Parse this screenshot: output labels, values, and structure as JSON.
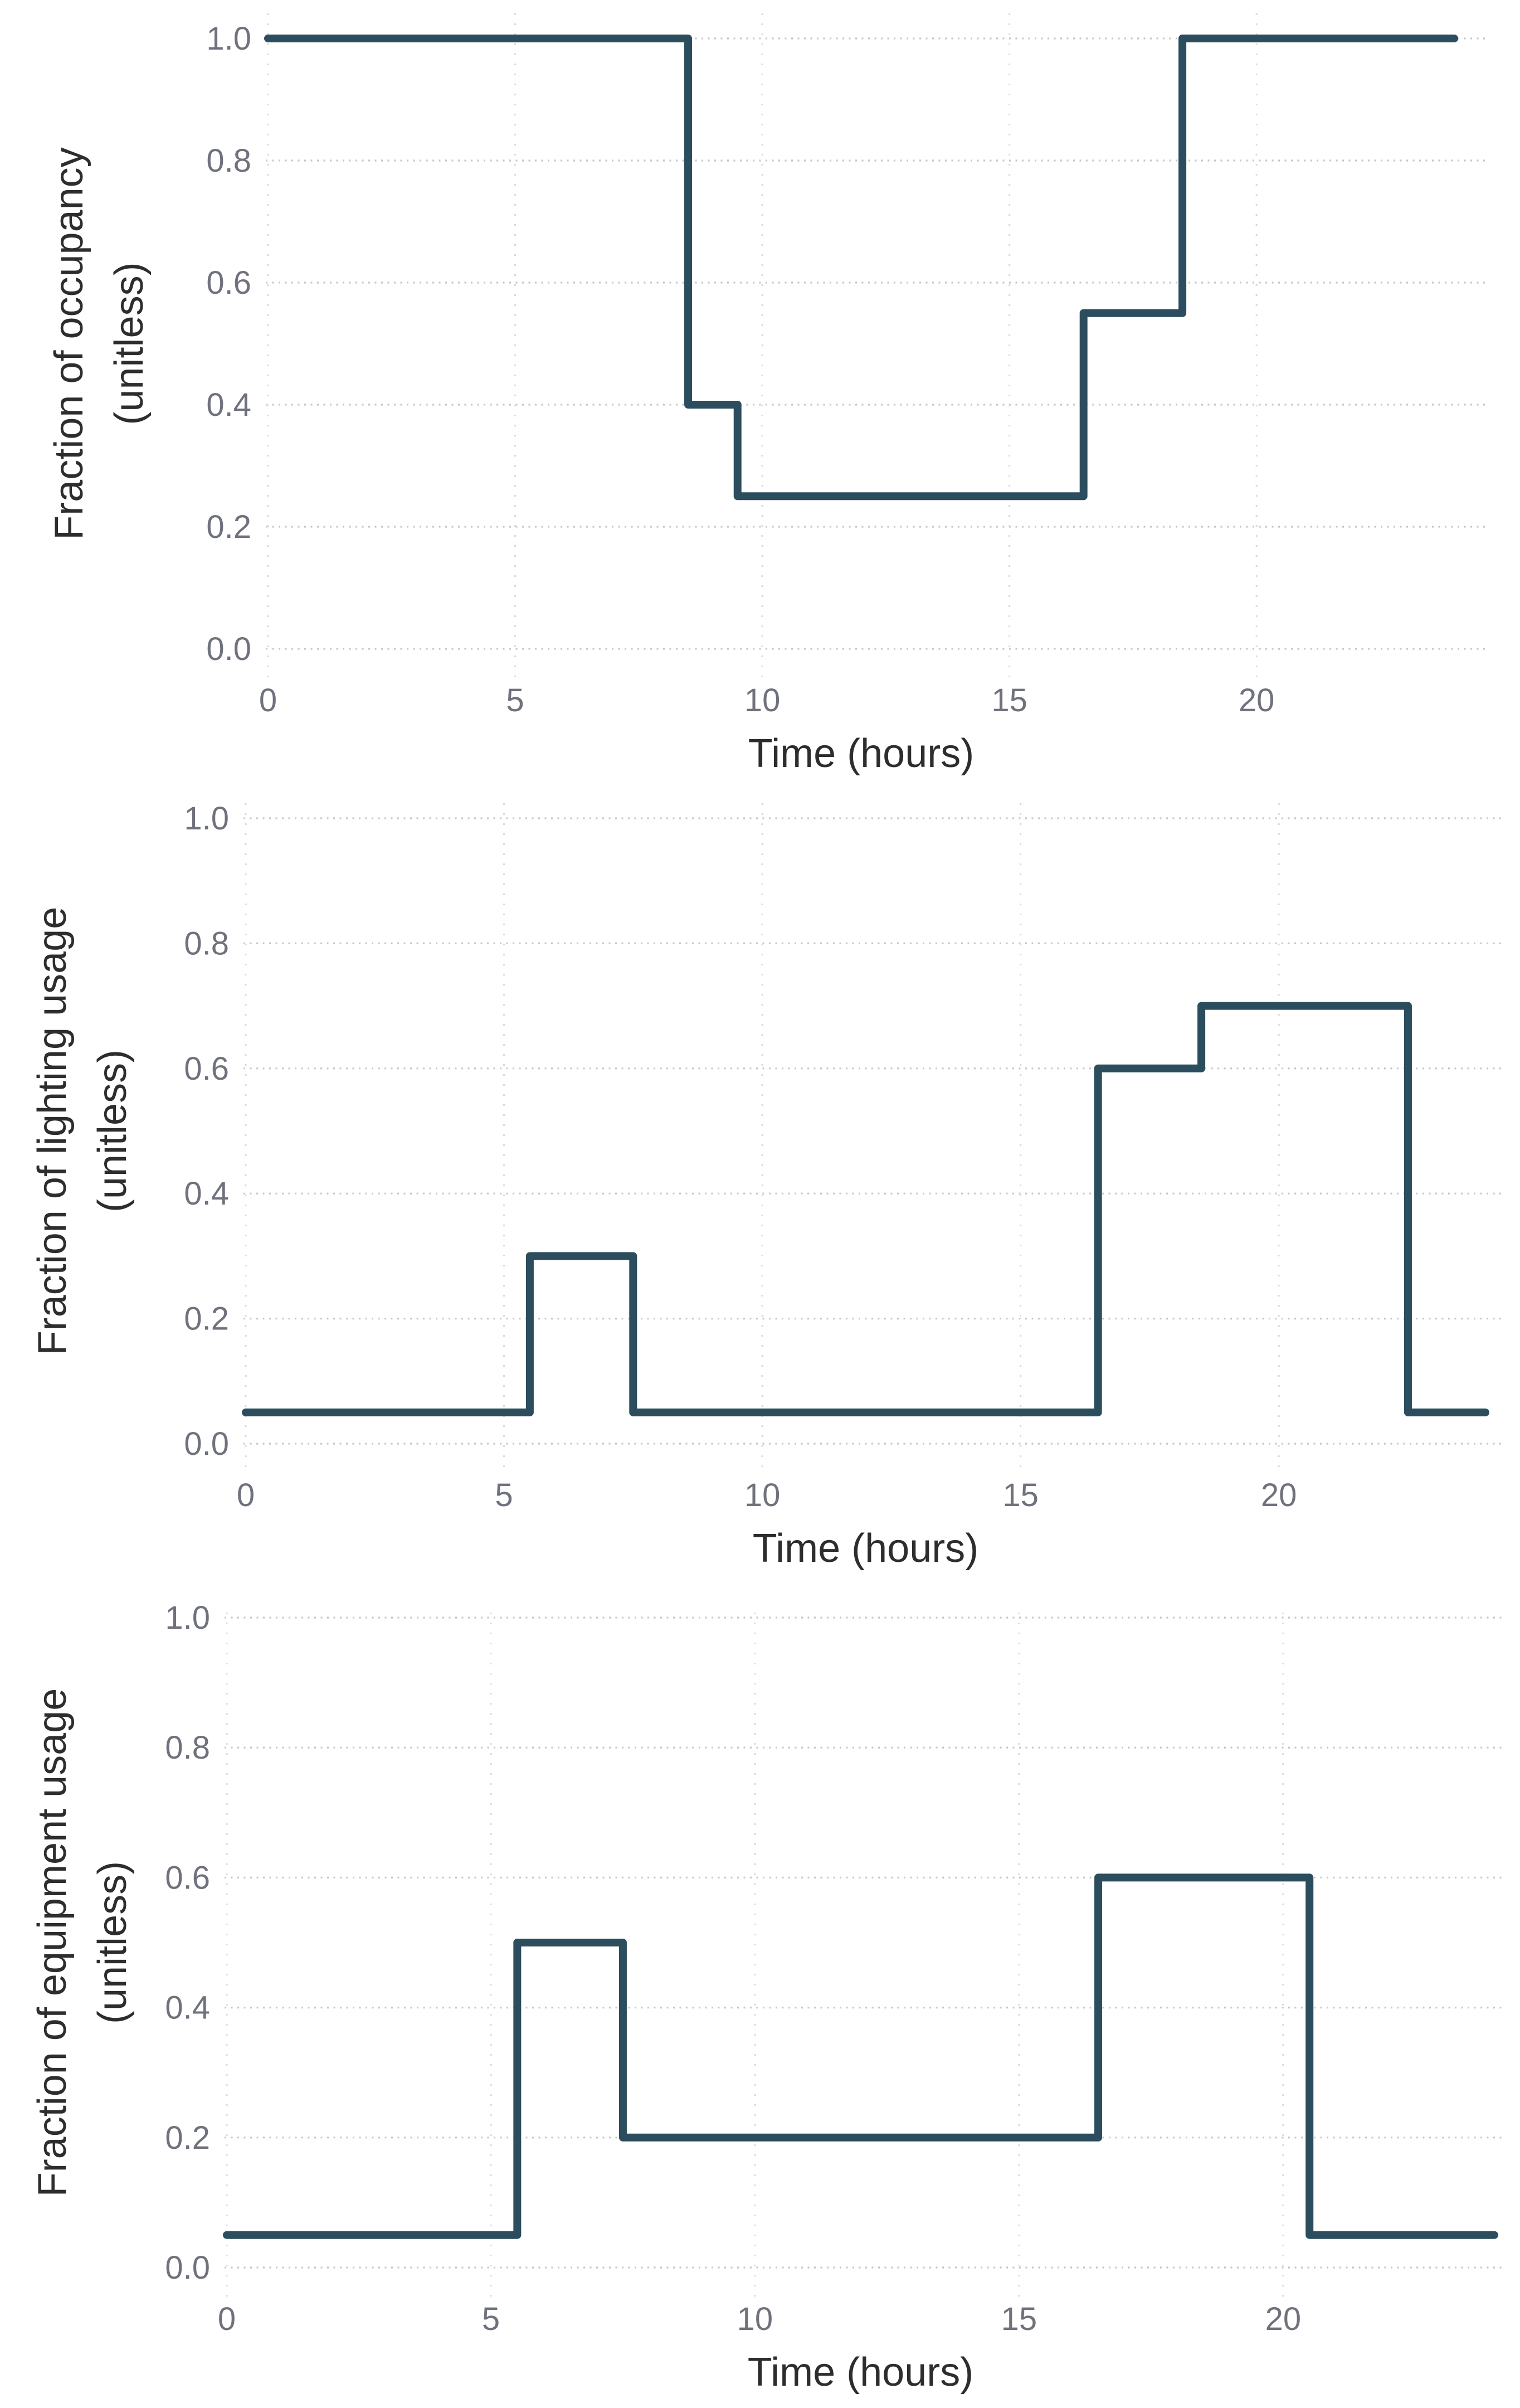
{
  "page": {
    "background": "#ffffff",
    "description": "Three stacked step-line charts of daily building schedules"
  },
  "colors": {
    "line": "#2b4d5d",
    "grid_horizontal": "#c6c6ca",
    "grid_vertical": "#d9d9dd",
    "tick_text": "#6f727d",
    "axis_title_text": "#2d2d2d"
  },
  "chart_data": [
    {
      "name": "occupancy-schedule",
      "type": "line",
      "step": true,
      "title": "",
      "xlabel": "Time (hours)",
      "ylabel": "Fraction of occupancy (unitless)",
      "ylabel_line1": "Fraction of occupancy",
      "ylabel_line2": "(unitless)",
      "xlim": [
        0,
        24
      ],
      "ylim": [
        0.0,
        1.0
      ],
      "grid": "dotted",
      "legend": "none",
      "x_tick_labels": [
        "0",
        "5",
        "10",
        "15",
        "20"
      ],
      "y_tick_labels": [
        "0.0",
        "0.2",
        "0.4",
        "0.6",
        "0.8",
        "1.0"
      ],
      "x_breaks": [
        0,
        8.5,
        9.5,
        16.5,
        18.5,
        24
      ],
      "segment_values": [
        1.0,
        0.4,
        0.25,
        0.55,
        1.0
      ]
    },
    {
      "name": "lighting-usage-schedule",
      "type": "line",
      "step": true,
      "title": "",
      "xlabel": "Time (hours)",
      "ylabel": "Fraction of lighting usage (unitless)",
      "ylabel_line1": "Fraction of lighting usage",
      "ylabel_line2": "(unitless)",
      "xlim": [
        0,
        24
      ],
      "ylim": [
        0.0,
        1.0
      ],
      "grid": "dotted",
      "legend": "none",
      "x_tick_labels": [
        "0",
        "5",
        "10",
        "15",
        "20"
      ],
      "y_tick_labels": [
        "0.0",
        "0.2",
        "0.4",
        "0.6",
        "0.8",
        "1.0"
      ],
      "x_breaks": [
        0,
        5.5,
        7.5,
        16.5,
        18.5,
        22.5,
        24
      ],
      "segment_values": [
        0.05,
        0.3,
        0.05,
        0.6,
        0.7,
        0.05
      ]
    },
    {
      "name": "equipment-usage-schedule",
      "type": "line",
      "step": true,
      "title": "",
      "xlabel": "Time (hours)",
      "ylabel": "Fraction of equipment usage (unitless)",
      "ylabel_line1": "Fraction of equipment usage",
      "ylabel_line2": "(unitless)",
      "xlim": [
        0,
        24
      ],
      "ylim": [
        0.0,
        1.0
      ],
      "grid": "dotted",
      "legend": "none",
      "x_tick_labels": [
        "0",
        "5",
        "10",
        "15",
        "20"
      ],
      "y_tick_labels": [
        "0.0",
        "0.2",
        "0.4",
        "0.6",
        "0.8",
        "1.0"
      ],
      "x_breaks": [
        0,
        5.5,
        7.5,
        16.5,
        20.5,
        24
      ],
      "segment_values": [
        0.05,
        0.5,
        0.2,
        0.6,
        0.05
      ]
    }
  ]
}
